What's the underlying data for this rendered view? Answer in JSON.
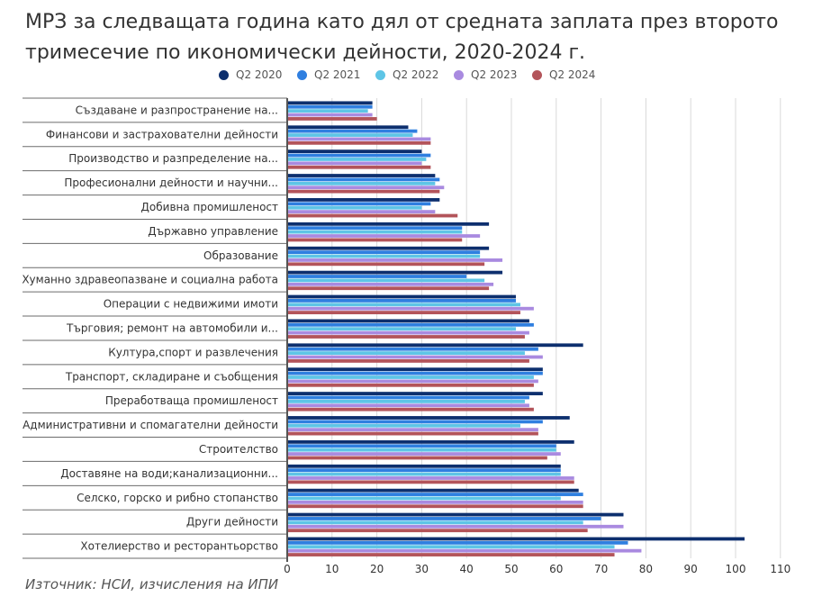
{
  "title": "МРЗ за следващата година като дял от средната заплата през второто тримесечие по икономически дейности, 2020-2024 г.",
  "source": "Източник: НСИ, изчисления на ИПИ",
  "chart_data": {
    "type": "bar",
    "orientation": "horizontal",
    "title": "МРЗ за следващата година като дял от средната заплата през второто тримесечие по икономически дейности, 2020-2024 г.",
    "xlim": [
      0,
      110
    ],
    "xticks": [
      0,
      10,
      20,
      30,
      40,
      50,
      60,
      70,
      80,
      90,
      100,
      110
    ],
    "grid": true,
    "legend_position": "top",
    "categories": [
      "Създаване и разпространение на...",
      "Финансови и застрахователни дейности",
      "Производство и разпределение на...",
      "Професионални дейности и научни...",
      "Добивна промишленост",
      "Държавно управление",
      "Образование",
      "Хуманно здравеопазване и социална работа",
      "Операции с недвижими имоти",
      "Търговия; ремонт на автомобили и...",
      "Култура,спорт и развлечения",
      "Транспорт, складиране и съобщения",
      "Преработваща промишленост",
      "Административни и спомагателни дейности",
      "Строителство",
      "Доставяне на води;канализационни...",
      "Селско, горско и рибно стопанство",
      "Други дейности",
      "Хотелиерство и ресторантьорство"
    ],
    "series": [
      {
        "name": "Q2 2020",
        "color": "#0d2f6e",
        "values": [
          19,
          27,
          30,
          33,
          34,
          45,
          45,
          48,
          51,
          54,
          66,
          57,
          57,
          63,
          64,
          61,
          65,
          75,
          102
        ]
      },
      {
        "name": "Q2 2021",
        "color": "#2f7fe0",
        "values": [
          19,
          29,
          32,
          34,
          32,
          39,
          43,
          40,
          51,
          55,
          56,
          57,
          54,
          57,
          60,
          61,
          66,
          70,
          76
        ]
      },
      {
        "name": "Q2 2022",
        "color": "#5ec5e6",
        "values": [
          18,
          28,
          31,
          33,
          30,
          39,
          43,
          44,
          52,
          51,
          53,
          55,
          53,
          52,
          60,
          61,
          61,
          66,
          73
        ]
      },
      {
        "name": "Q2 2023",
        "color": "#a98ae0",
        "values": [
          19,
          32,
          30,
          35,
          33,
          43,
          48,
          46,
          55,
          54,
          57,
          56,
          54,
          56,
          61,
          64,
          66,
          75,
          79
        ]
      },
      {
        "name": "Q2 2024",
        "color": "#b3545a",
        "values": [
          20,
          32,
          32,
          34,
          38,
          39,
          44,
          45,
          52,
          53,
          54,
          55,
          55,
          56,
          58,
          64,
          66,
          67,
          73
        ]
      }
    ]
  }
}
